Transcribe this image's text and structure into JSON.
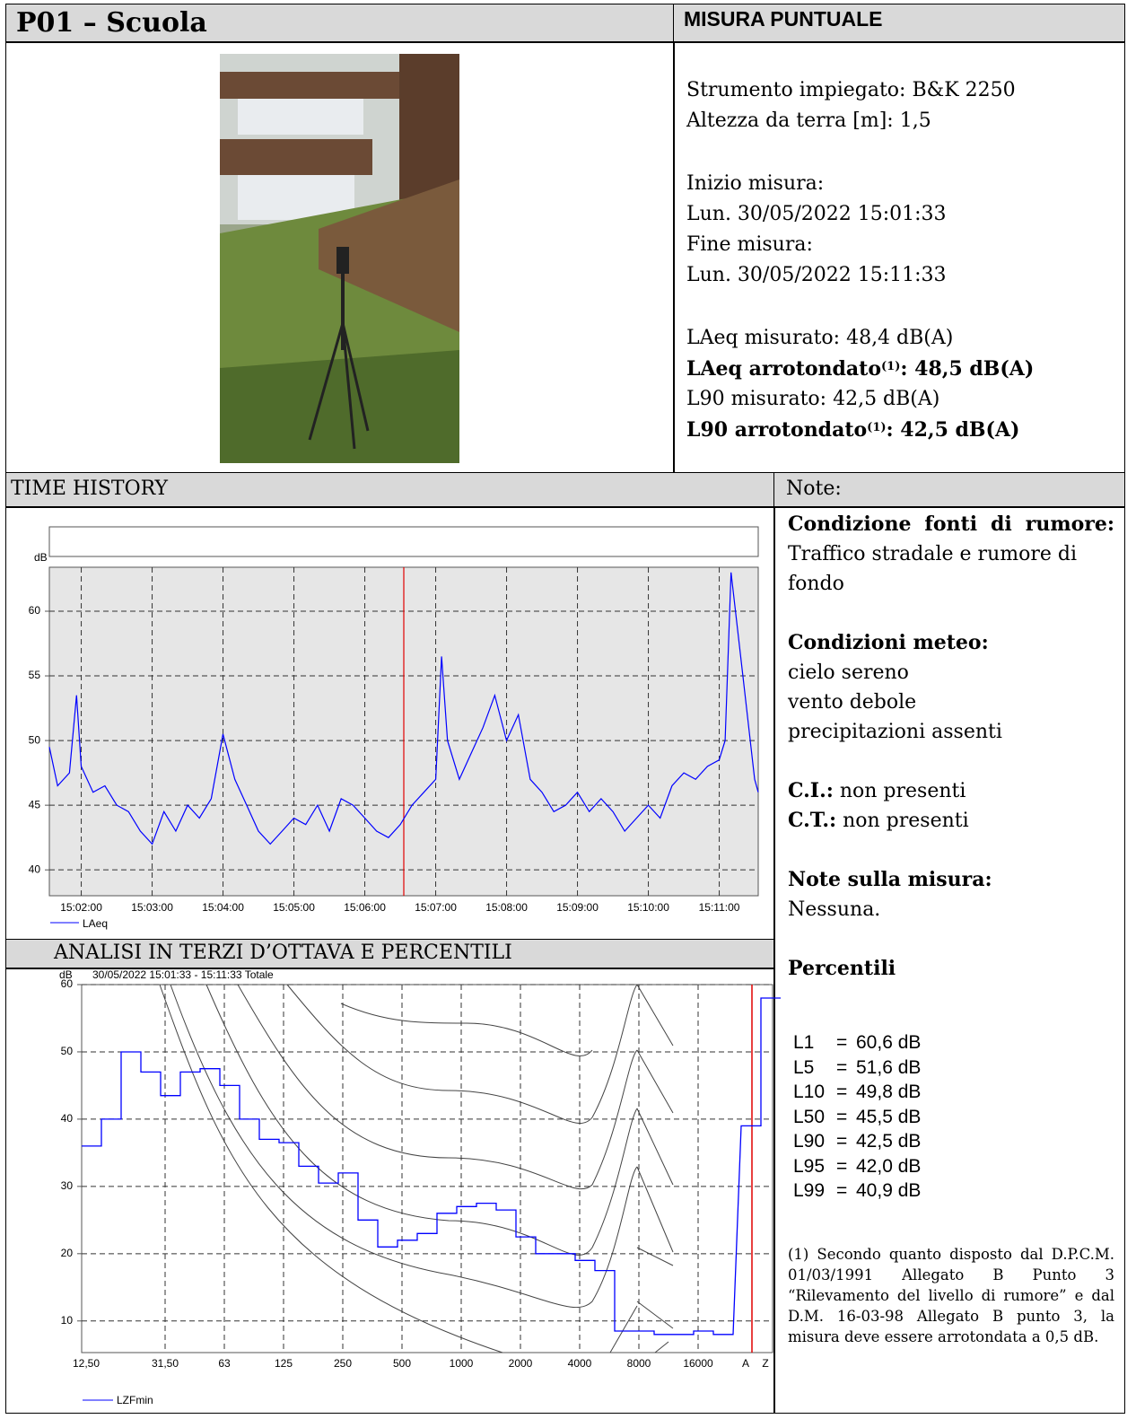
{
  "header": {
    "title": "P01 – Scuola",
    "type": "MISURA PUNTUALE"
  },
  "info": {
    "instrument": "Strumento impiegato: B&K 2250",
    "height": "Altezza da terra [m]: 1,5",
    "start_label": "Inizio misura:",
    "start": "Lun. 30/05/2022 15:01:33",
    "end_label": "Fine misura:",
    "end": "Lun. 30/05/2022 15:11:33",
    "laeq": "LAeq misurato: 48,4 dB(A)",
    "laeq_round": [
      "LAeq arrotondato",
      "(1)",
      ": 48,5 dB(A)"
    ],
    "l90": "L90 misurato: 42,5 dB(A)",
    "l90_round": [
      "L90 arrotondato",
      "(1)",
      ": 42,5 dB(A)"
    ]
  },
  "sections": {
    "time_history": "TIME HISTORY",
    "notes": "Note:",
    "spectrum": "ANALISI IN TERZI D’OTTAVA E PERCENTILI"
  },
  "notes": {
    "sources_title": "Condizione fonti di rumore:",
    "sources": "Traffico stradale e rumore di fondo",
    "meteo_title": "Condizioni meteo:",
    "meteo": [
      "cielo sereno",
      "vento debole",
      "precipitazioni assenti"
    ],
    "ci_label": "C.I.:",
    "ci": "non presenti",
    "ct_label": "C.T.:",
    "ct": "non presenti",
    "measure_title": "Note sulla misura:",
    "measure": "Nessuna.",
    "percentiles_title": "Percentili",
    "percentile_sep": "=",
    "percentiles": [
      [
        "L1",
        "60,6 dB"
      ],
      [
        "L5",
        "51,6 dB"
      ],
      [
        "L10",
        "49,8 dB"
      ],
      [
        "L50",
        "45,5 dB"
      ],
      [
        "L90",
        "42,5 dB"
      ],
      [
        "L95",
        "42,0 dB"
      ],
      [
        "L99",
        "40,9 dB"
      ]
    ],
    "footnote": "(1) Secondo quanto disposto dal D.P.C.M. 01/03/1991 Allegato B Punto 3 “Rilevamento del livello di rumore” e dal D.M. 16-03-98 Allegato B punto 3, la misura deve essere arrotondata a 0,5 dB."
  },
  "chart_data": [
    {
      "type": "line",
      "y_label": "dB",
      "x": [
        "15:01:33",
        "15:01:40",
        "15:01:50",
        "15:01:56",
        "15:02:00",
        "15:02:10",
        "15:02:20",
        "15:02:30",
        "15:02:40",
        "15:02:50",
        "15:03:00",
        "15:03:10",
        "15:03:20",
        "15:03:30",
        "15:03:40",
        "15:03:50",
        "15:04:00",
        "15:04:10",
        "15:04:20",
        "15:04:30",
        "15:04:40",
        "15:04:50",
        "15:05:00",
        "15:05:10",
        "15:05:20",
        "15:05:30",
        "15:05:40",
        "15:05:50",
        "15:06:00",
        "15:06:10",
        "15:06:20",
        "15:06:30",
        "15:06:40",
        "15:06:50",
        "15:07:00",
        "15:07:05",
        "15:07:10",
        "15:07:20",
        "15:07:30",
        "15:07:40",
        "15:07:50",
        "15:08:00",
        "15:08:10",
        "15:08:20",
        "15:08:30",
        "15:08:40",
        "15:08:50",
        "15:09:00",
        "15:09:10",
        "15:09:20",
        "15:09:30",
        "15:09:40",
        "15:09:50",
        "15:10:00",
        "15:10:10",
        "15:10:20",
        "15:10:30",
        "15:10:40",
        "15:10:50",
        "15:11:00",
        "15:11:05",
        "15:11:10",
        "15:11:20",
        "15:11:30",
        "15:11:33"
      ],
      "series": [
        {
          "name": "LAeq",
          "color": "#0000ff",
          "values": [
            49.5,
            46.5,
            47.5,
            53.5,
            48,
            46,
            46.5,
            45,
            44.5,
            43,
            42,
            44.5,
            43,
            45,
            44,
            45.5,
            50.5,
            47,
            45,
            43,
            42,
            43,
            44,
            43.5,
            45,
            43,
            45.5,
            45,
            44,
            43,
            42.5,
            43.5,
            45,
            46,
            47,
            56.5,
            50,
            47,
            49,
            51,
            53.5,
            50,
            52,
            47,
            46,
            44.5,
            45,
            46,
            44.5,
            45.5,
            44.5,
            43,
            44,
            45,
            44,
            46.5,
            47.5,
            47,
            48,
            48.5,
            50,
            63,
            55,
            47,
            46
          ]
        }
      ],
      "xlim": [
        "15:01:33",
        "15:11:33"
      ],
      "xticks": [
        "15:02:00",
        "15:03:00",
        "15:04:00",
        "15:05:00",
        "15:06:00",
        "15:07:00",
        "15:08:00",
        "15:09:00",
        "15:10:00",
        "15:11:00"
      ],
      "ylim": [
        38,
        63.4
      ],
      "yticks": [
        40,
        45,
        50,
        55,
        60
      ],
      "grid": true,
      "cursor": "15:06:33"
    },
    {
      "type": "step",
      "title": "30/05/2022 15:01:33 - 15:11:33  Totale",
      "y_label": "dB",
      "categories": [
        "12,50",
        null,
        null,
        null,
        "31,50",
        null,
        null,
        "63",
        null,
        null,
        "125",
        null,
        null,
        "250",
        null,
        null,
        "500",
        null,
        null,
        "1000",
        null,
        null,
        "2000",
        null,
        null,
        "4000",
        null,
        null,
        "8000",
        null,
        null,
        "16000",
        null,
        "A",
        "Z"
      ],
      "series": [
        {
          "name": "LZFmin",
          "color": "#0000ff",
          "values": [
            36,
            40,
            50,
            47,
            43.5,
            47,
            47.5,
            45,
            40,
            37,
            36.5,
            33,
            30.5,
            32,
            25,
            21,
            22,
            23,
            26,
            27,
            27.5,
            26.5,
            22.5,
            20,
            20,
            19,
            17.5,
            8.5,
            8.5,
            8,
            8,
            8.5,
            8,
            39,
            58
          ]
        }
      ],
      "ylim": [
        5.3,
        60
      ],
      "yticks": [
        10,
        20,
        30,
        40,
        50,
        60
      ],
      "grid": true
    }
  ]
}
